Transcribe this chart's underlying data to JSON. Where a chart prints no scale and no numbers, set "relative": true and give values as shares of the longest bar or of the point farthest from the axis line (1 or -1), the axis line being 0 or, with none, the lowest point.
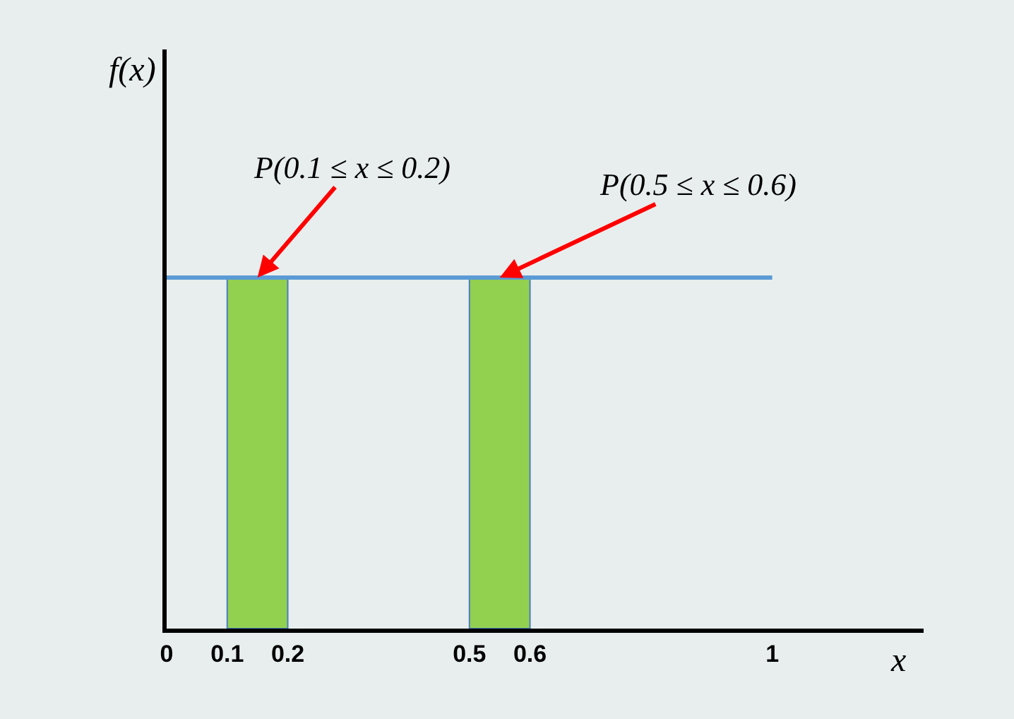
{
  "chart_data": {
    "type": "bar",
    "relative": true,
    "xlabel": "x",
    "x": [
      0.15,
      0.55
    ],
    "values": [
      1,
      1
    ],
    "color": "#92d050",
    "ref_lines": [
      {
        "axis": "y",
        "value": 1,
        "color": "#5b9bd5"
      }
    ],
    "xlim": [
      0,
      1.25
    ],
    "xticks": [
      0,
      0.1,
      0.2,
      0.5,
      0.6,
      1
    ],
    "annotations": [
      "f(x)",
      {
        "text": "P(0.1 ≤ x ≤ 0.2)",
        "x": 0.15,
        "y": 1
      },
      {
        "text": "P(0.5 ≤ x ≤ 0.6)",
        "x": 0.55,
        "y": 1
      }
    ],
    "grid": false
  }
}
